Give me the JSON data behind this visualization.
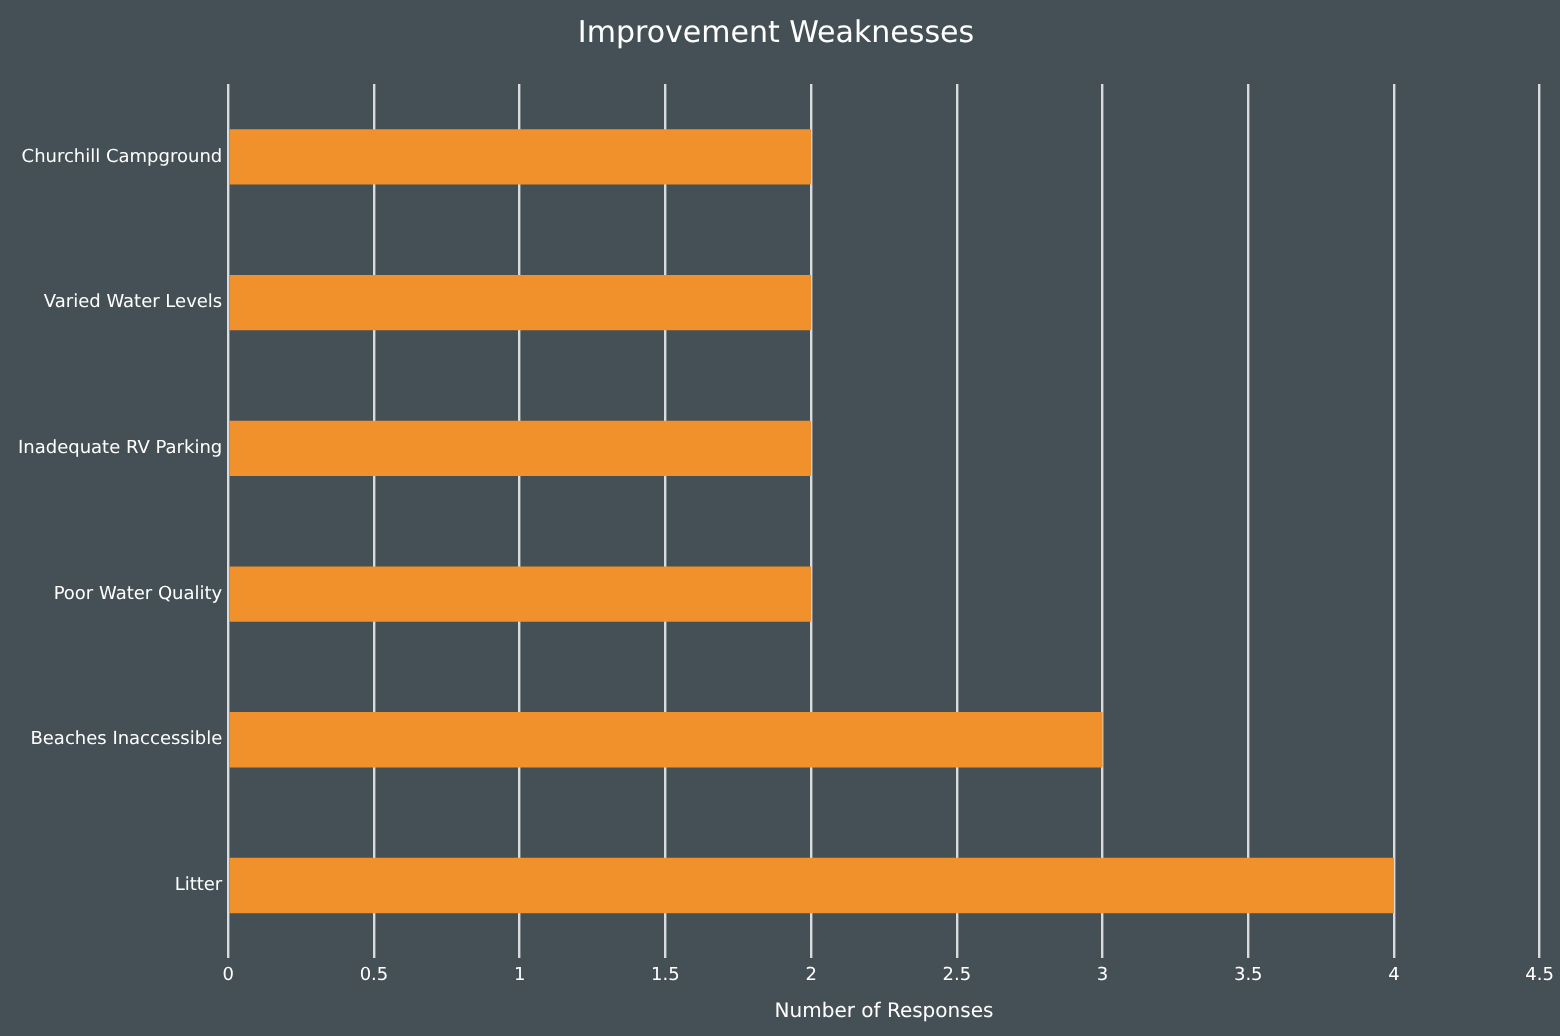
{
  "chart_data": {
    "type": "bar",
    "orientation": "horizontal",
    "title": "Improvement Weaknesses",
    "xlabel": "Number of Responses",
    "categories": [
      "Churchill Campground",
      "Varied Water Levels",
      "Inadequate RV Parking",
      "Poor Water Quality",
      "Beaches Inaccessible",
      "Litter"
    ],
    "values": [
      2,
      2,
      2,
      2,
      3,
      4
    ],
    "color": "#f0912b",
    "xlim": [
      0,
      4.5
    ],
    "xticks": [
      0,
      0.5,
      1,
      1.5,
      2,
      2.5,
      3,
      3.5,
      4,
      4.5
    ],
    "grid": "x",
    "legend": false
  }
}
